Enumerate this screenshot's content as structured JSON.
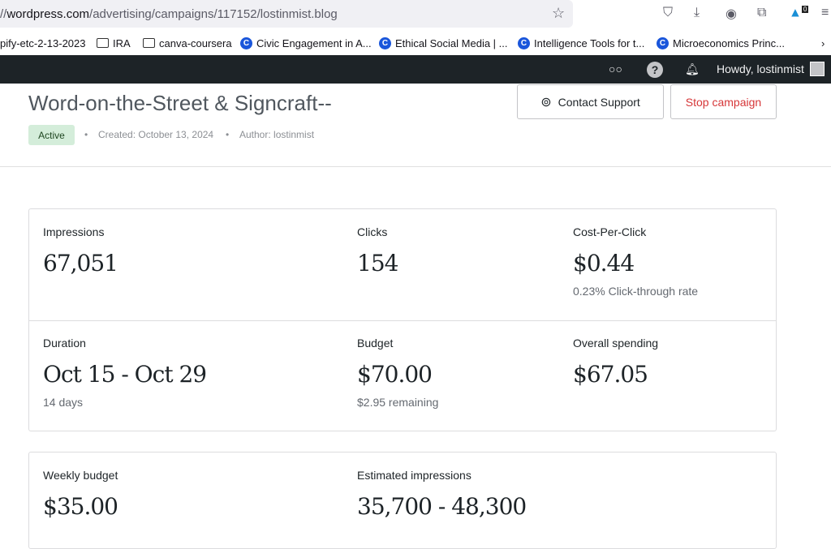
{
  "browser": {
    "url_prefix": "//",
    "url_domain": "wordpress.com",
    "url_path": "/advertising/campaigns/117152/lostinmist.blog",
    "extension_badge": "0",
    "bookmarks": [
      {
        "label": "pify-etc-2-13-2023",
        "icon": "none"
      },
      {
        "label": "IRA",
        "icon": "folder-icon"
      },
      {
        "label": "canva-coursera",
        "icon": "folder-icon"
      },
      {
        "label": "Civic Engagement in A...",
        "icon": "c-icon"
      },
      {
        "label": "Ethical Social Media | ...",
        "icon": "c-icon"
      },
      {
        "label": "Intelligence Tools for t...",
        "icon": "c-icon"
      },
      {
        "label": "Microeconomics Princ...",
        "icon": "c-icon"
      }
    ]
  },
  "adminbar": {
    "greeting": "Howdy, lostinmist"
  },
  "header": {
    "title": "Word-on-the-Street & Signcraft--",
    "status": "Active",
    "created": "Created: October 13, 2024",
    "author": "Author: lostinmist",
    "contact_label": "Contact Support",
    "stop_label": "Stop campaign",
    "stop_color": "#d63638"
  },
  "stats": {
    "impressions": {
      "label": "Impressions",
      "value": "67,051"
    },
    "clicks": {
      "label": "Clicks",
      "value": "154"
    },
    "cpc": {
      "label": "Cost-Per-Click",
      "value": "$0.44",
      "sub": "0.23% Click-through rate"
    },
    "duration": {
      "label": "Duration",
      "value": "Oct 15 - Oct 29",
      "sub": "14 days"
    },
    "budget": {
      "label": "Budget",
      "value": "$70.00",
      "sub": "$2.95 remaining"
    },
    "spending": {
      "label": "Overall spending",
      "value": "$67.05"
    }
  },
  "estimates": {
    "weekly": {
      "label": "Weekly budget",
      "value": "$35.00"
    },
    "impressions": {
      "label": "Estimated impressions",
      "value": "35,700 - 48,300"
    }
  }
}
